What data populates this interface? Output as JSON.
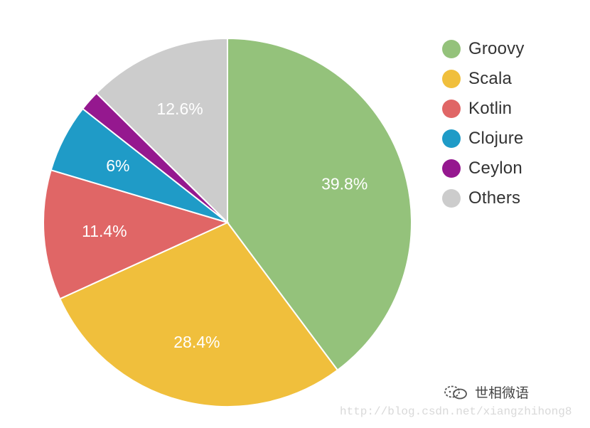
{
  "chart_data": {
    "type": "pie",
    "categories": [
      "Groovy",
      "Scala",
      "Kotlin",
      "Clojure",
      "Ceylon",
      "Others"
    ],
    "values": [
      39.8,
      28.4,
      11.4,
      6,
      1.8,
      12.6
    ],
    "data_labels": [
      "39.8%",
      "28.4%",
      "11.4%",
      "6%",
      "",
      "12.6%"
    ],
    "colors": [
      "#94c27b",
      "#f0bf3c",
      "#e06666",
      "#1f9bc7",
      "#95188f",
      "#cccccc"
    ],
    "start_angle_deg": 0,
    "direction": "clockwise",
    "legend_position": "right",
    "title": ""
  },
  "legend": {
    "items": [
      {
        "label": "Groovy",
        "color": "#94c27b"
      },
      {
        "label": "Scala",
        "color": "#f0bf3c"
      },
      {
        "label": "Kotlin",
        "color": "#e06666"
      },
      {
        "label": "Clojure",
        "color": "#1f9bc7"
      },
      {
        "label": "Ceylon",
        "color": "#95188f"
      },
      {
        "label": "Others",
        "color": "#cccccc"
      }
    ]
  },
  "watermark": {
    "text": "世相微语",
    "icon": "chat-bubbles-icon",
    "site": "http://blog.csdn.net/xiangzhihong8"
  }
}
